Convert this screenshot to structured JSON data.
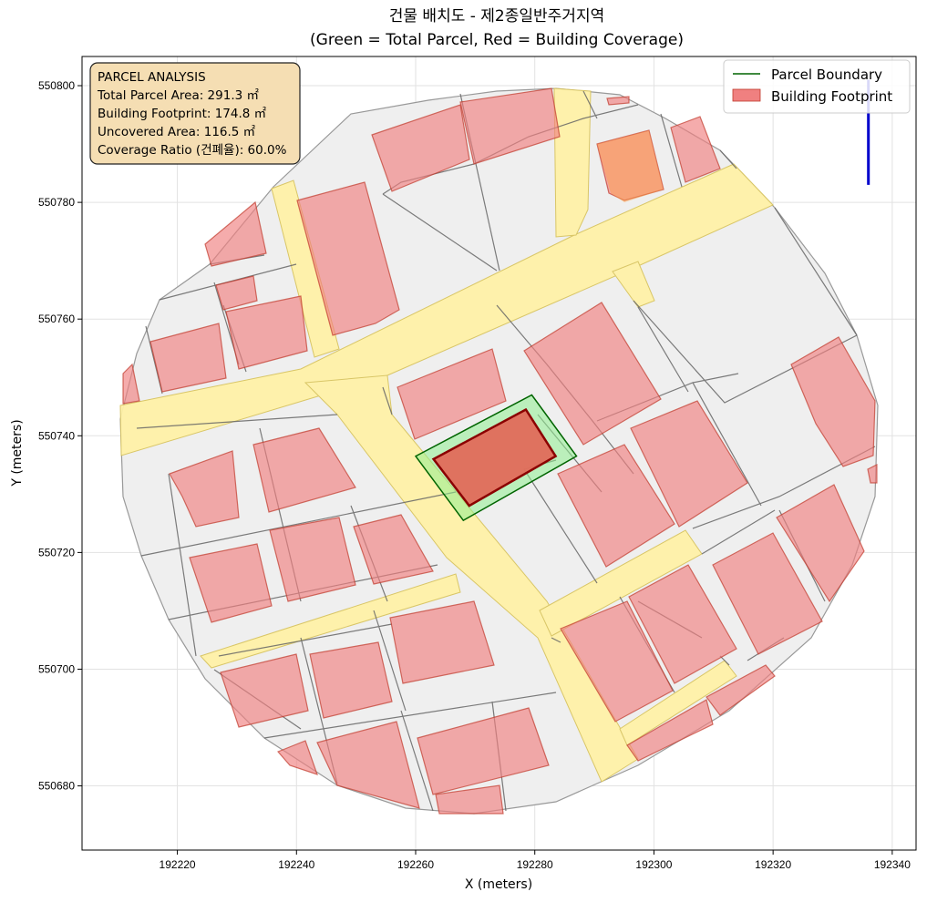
{
  "title_line1": "건물 배치도 - 제2종일반주거지역",
  "title_line2": "(Green = Total Parcel, Red = Building Coverage)",
  "info_box": {
    "heading": "PARCEL ANALYSIS",
    "total_area": "Total Parcel Area: 291.3 ㎡",
    "footprint": "Building Footprint: 174.8 ㎡",
    "uncovered": "Uncovered Area: 116.5 ㎡",
    "coverage": "Coverage Ratio (건폐율): 60.0%"
  },
  "colors": {
    "parcel_edge": "#006400",
    "parcel_fill": "#90ee90",
    "building_edge": "#8b0000",
    "building_fill": "#e06a5a",
    "context_building": "#f08080",
    "road": "#fff2a8",
    "lot_fill": "#efefef",
    "north_arrow": "#0000cc",
    "info_box_bg": "#f5deb3"
  },
  "chart_data": {
    "type": "map",
    "xlabel": "X (meters)",
    "ylabel": "Y (meters)",
    "xlim": [
      192204,
      192344
    ],
    "ylim": [
      550669,
      550805
    ],
    "xticks": [
      192220,
      192240,
      192260,
      192280,
      192300,
      192320,
      192340
    ],
    "yticks": [
      550680,
      550700,
      550720,
      550740,
      550760,
      550780,
      550800
    ],
    "grid": true,
    "legend_position": "top-right",
    "legend": [
      {
        "label": "Parcel Boundary",
        "kind": "line",
        "color": "#006400"
      },
      {
        "label": "Building Footprint",
        "kind": "patch",
        "color": "#f08080"
      }
    ],
    "target_parcel": [
      [
        192260,
        550736.5
      ],
      [
        192268,
        550725.5
      ],
      [
        192287,
        550736.5
      ],
      [
        192279.5,
        550747
      ]
    ],
    "target_building": [
      [
        192263,
        550736
      ],
      [
        192269,
        550728
      ],
      [
        192283.5,
        550736.5
      ],
      [
        192278.5,
        550744.5
      ]
    ],
    "north_arrow": {
      "x": 192336,
      "y_tail": 550783,
      "y_head": 550801
    }
  }
}
